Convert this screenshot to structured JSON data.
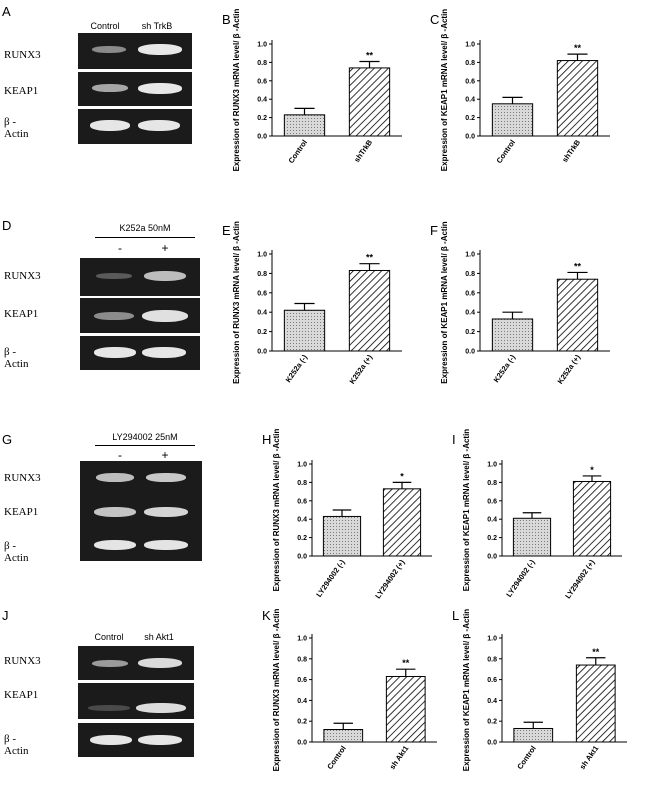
{
  "blots": [
    {
      "panel": "A",
      "header_title": "",
      "columns": [
        "Control",
        "sh TrkB"
      ],
      "rows": [
        "RUNX3",
        "KEAP1",
        "β -Actin"
      ]
    },
    {
      "panel": "D",
      "header_title": "K252a 50nM",
      "columns": [
        "-",
        "+"
      ],
      "rows": [
        "RUNX3",
        "KEAP1",
        "β -Actin"
      ]
    },
    {
      "panel": "G",
      "header_title": "LY294002  25nM",
      "columns": [
        "-",
        "+"
      ],
      "rows": [
        "RUNX3",
        "KEAP1",
        "β -Actin"
      ]
    },
    {
      "panel": "J",
      "header_title": "",
      "columns": [
        "Control",
        "sh Akt1"
      ],
      "rows": [
        "RUNX3",
        "KEAP1",
        "β -Actin"
      ]
    }
  ],
  "chart_data": [
    {
      "panel": "B",
      "type": "bar",
      "ylabel": "Expression of RUNX3 mRNA level/ β -Actin",
      "ylim": [
        0,
        1.0
      ],
      "ticks": [
        "0.0",
        "0.2",
        "0.4",
        "0.6",
        "0.8",
        "1.0"
      ],
      "categories": [
        "Control",
        "shTrkB"
      ],
      "values": [
        0.23,
        0.74
      ],
      "errors": [
        0.07,
        0.07
      ],
      "sig": [
        "",
        "**"
      ]
    },
    {
      "panel": "C",
      "type": "bar",
      "ylabel": "Expression of KEAP1 mRNA level/ β -Actin",
      "ylim": [
        0,
        1.0
      ],
      "ticks": [
        "0.0",
        "0.2",
        "0.4",
        "0.6",
        "0.8",
        "1.0"
      ],
      "categories": [
        "Control",
        "shTrkB"
      ],
      "values": [
        0.35,
        0.82
      ],
      "errors": [
        0.07,
        0.07
      ],
      "sig": [
        "",
        "**"
      ]
    },
    {
      "panel": "E",
      "type": "bar",
      "ylabel": "Expression of RUNX3 mRNA level/ β -Actin",
      "ylim": [
        0,
        1.0
      ],
      "ticks": [
        "0.0",
        "0.2",
        "0.4",
        "0.6",
        "0.8",
        "1.0"
      ],
      "categories": [
        "K252a (-)",
        "K252a (+)"
      ],
      "values": [
        0.42,
        0.83
      ],
      "errors": [
        0.07,
        0.07
      ],
      "sig": [
        "",
        "**"
      ]
    },
    {
      "panel": "F",
      "type": "bar",
      "ylabel": "Expression of KEAP1 mRNA level/ β -Actin",
      "ylim": [
        0,
        1.0
      ],
      "ticks": [
        "0.0",
        "0.2",
        "0.4",
        "0.6",
        "0.8",
        "1.0"
      ],
      "categories": [
        "K252a (-)",
        "K252a (+)"
      ],
      "values": [
        0.33,
        0.74
      ],
      "errors": [
        0.07,
        0.07
      ],
      "sig": [
        "",
        "**"
      ]
    },
    {
      "panel": "H",
      "type": "bar",
      "ylabel": "Expression of RUNX3 mRNA level/ β -Actin",
      "ylim": [
        0,
        1.0
      ],
      "ticks": [
        "0.0",
        "0.2",
        "0.4",
        "0.6",
        "0.8",
        "1.0"
      ],
      "categories": [
        "LY294002 (-)",
        "LY294002 (+)"
      ],
      "values": [
        0.43,
        0.73
      ],
      "errors": [
        0.07,
        0.07
      ],
      "sig": [
        "",
        "*"
      ]
    },
    {
      "panel": "I",
      "type": "bar",
      "ylabel": "Expression of KEAP1 mRNA level/ β -Actin",
      "ylim": [
        0,
        1.0
      ],
      "ticks": [
        "0.0",
        "0.2",
        "0.4",
        "0.6",
        "0.8",
        "1.0"
      ],
      "categories": [
        "LY294002 (-)",
        "LY294002 (+)"
      ],
      "values": [
        0.41,
        0.81
      ],
      "errors": [
        0.06,
        0.06
      ],
      "sig": [
        "",
        "*"
      ]
    },
    {
      "panel": "K",
      "type": "bar",
      "ylabel": "Expression of RUNX3 mRNA level/ β -Actin",
      "ylim": [
        0,
        1.0
      ],
      "ticks": [
        "0.0",
        "0.2",
        "0.4",
        "0.6",
        "0.8",
        "1.0"
      ],
      "categories": [
        "Control",
        "sh Akt1"
      ],
      "values": [
        0.12,
        0.63
      ],
      "errors": [
        0.06,
        0.07
      ],
      "sig": [
        "",
        "**"
      ]
    },
    {
      "panel": "L",
      "type": "bar",
      "ylabel": "Expression of KEAP1 mRNA level/ β -Actin",
      "ylim": [
        0,
        1.0
      ],
      "ticks": [
        "0.0",
        "0.2",
        "0.4",
        "0.6",
        "0.8",
        "1.0"
      ],
      "categories": [
        "Control",
        "sh Akt1"
      ],
      "values": [
        0.13,
        0.74
      ],
      "errors": [
        0.06,
        0.07
      ],
      "sig": [
        "",
        "**"
      ]
    }
  ]
}
